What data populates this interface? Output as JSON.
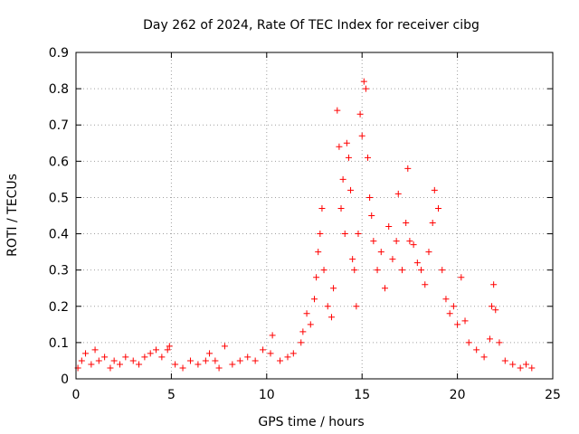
{
  "chart_data": {
    "type": "scatter",
    "title": "Day 262 of 2024, Rate Of TEC Index for receiver cibg",
    "xlabel": "GPS time / hours",
    "ylabel": "ROTI / TECUs",
    "xlim": [
      0,
      25
    ],
    "ylim": [
      0,
      0.9
    ],
    "xticks": [
      0,
      5,
      10,
      15,
      20,
      25
    ],
    "yticks": [
      0,
      0.1,
      0.2,
      0.3,
      0.4,
      0.5,
      0.6,
      0.7,
      0.8,
      0.9
    ],
    "grid": true,
    "marker": "+",
    "marker_color": "#ff0000",
    "grid_color": "#a0a0a0",
    "series": [
      {
        "name": "ROTI",
        "points": [
          [
            0.1,
            0.03
          ],
          [
            0.3,
            0.05
          ],
          [
            0.5,
            0.07
          ],
          [
            0.8,
            0.04
          ],
          [
            1.0,
            0.08
          ],
          [
            1.2,
            0.05
          ],
          [
            1.5,
            0.06
          ],
          [
            1.8,
            0.03
          ],
          [
            2.0,
            0.05
          ],
          [
            2.3,
            0.04
          ],
          [
            2.6,
            0.06
          ],
          [
            3.0,
            0.05
          ],
          [
            3.3,
            0.04
          ],
          [
            3.6,
            0.06
          ],
          [
            3.9,
            0.07
          ],
          [
            4.2,
            0.08
          ],
          [
            4.5,
            0.06
          ],
          [
            4.8,
            0.08
          ],
          [
            4.9,
            0.09
          ],
          [
            5.2,
            0.04
          ],
          [
            5.6,
            0.03
          ],
          [
            6.0,
            0.05
          ],
          [
            6.4,
            0.04
          ],
          [
            6.8,
            0.05
          ],
          [
            7.0,
            0.07
          ],
          [
            7.3,
            0.05
          ],
          [
            7.5,
            0.03
          ],
          [
            7.8,
            0.09
          ],
          [
            8.2,
            0.04
          ],
          [
            8.6,
            0.05
          ],
          [
            9.0,
            0.06
          ],
          [
            9.4,
            0.05
          ],
          [
            9.8,
            0.08
          ],
          [
            10.2,
            0.07
          ],
          [
            10.3,
            0.12
          ],
          [
            10.7,
            0.05
          ],
          [
            11.1,
            0.06
          ],
          [
            11.4,
            0.07
          ],
          [
            11.8,
            0.1
          ],
          [
            11.9,
            0.13
          ],
          [
            12.1,
            0.18
          ],
          [
            12.3,
            0.15
          ],
          [
            12.5,
            0.22
          ],
          [
            12.6,
            0.28
          ],
          [
            12.7,
            0.35
          ],
          [
            12.8,
            0.4
          ],
          [
            12.9,
            0.47
          ],
          [
            13.0,
            0.3
          ],
          [
            13.2,
            0.2
          ],
          [
            13.4,
            0.17
          ],
          [
            13.5,
            0.25
          ],
          [
            13.7,
            0.74
          ],
          [
            13.8,
            0.64
          ],
          [
            13.9,
            0.47
          ],
          [
            14.0,
            0.55
          ],
          [
            14.1,
            0.4
          ],
          [
            14.2,
            0.65
          ],
          [
            14.3,
            0.61
          ],
          [
            14.4,
            0.52
          ],
          [
            14.5,
            0.33
          ],
          [
            14.6,
            0.3
          ],
          [
            14.7,
            0.2
          ],
          [
            14.8,
            0.4
          ],
          [
            14.9,
            0.73
          ],
          [
            15.0,
            0.67
          ],
          [
            15.1,
            0.82
          ],
          [
            15.2,
            0.8
          ],
          [
            15.3,
            0.61
          ],
          [
            15.4,
            0.5
          ],
          [
            15.5,
            0.45
          ],
          [
            15.6,
            0.38
          ],
          [
            15.8,
            0.3
          ],
          [
            16.0,
            0.35
          ],
          [
            16.2,
            0.25
          ],
          [
            16.4,
            0.42
          ],
          [
            16.6,
            0.33
          ],
          [
            16.8,
            0.38
          ],
          [
            16.9,
            0.51
          ],
          [
            17.1,
            0.3
          ],
          [
            17.3,
            0.43
          ],
          [
            17.4,
            0.58
          ],
          [
            17.5,
            0.38
          ],
          [
            17.7,
            0.37
          ],
          [
            17.9,
            0.32
          ],
          [
            18.1,
            0.3
          ],
          [
            18.3,
            0.26
          ],
          [
            18.5,
            0.35
          ],
          [
            18.7,
            0.43
          ],
          [
            18.8,
            0.52
          ],
          [
            19.0,
            0.47
          ],
          [
            19.2,
            0.3
          ],
          [
            19.4,
            0.22
          ],
          [
            19.6,
            0.18
          ],
          [
            19.8,
            0.2
          ],
          [
            20.0,
            0.15
          ],
          [
            20.2,
            0.28
          ],
          [
            20.4,
            0.16
          ],
          [
            20.6,
            0.1
          ],
          [
            21.0,
            0.08
          ],
          [
            21.4,
            0.06
          ],
          [
            21.7,
            0.11
          ],
          [
            21.8,
            0.2
          ],
          [
            21.9,
            0.26
          ],
          [
            22.0,
            0.19
          ],
          [
            22.2,
            0.1
          ],
          [
            22.5,
            0.05
          ],
          [
            22.9,
            0.04
          ],
          [
            23.3,
            0.03
          ],
          [
            23.6,
            0.04
          ],
          [
            23.9,
            0.03
          ]
        ]
      }
    ]
  }
}
